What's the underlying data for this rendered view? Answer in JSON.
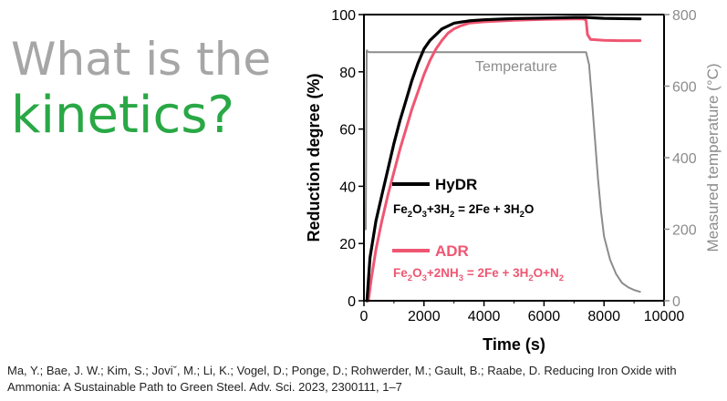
{
  "headline": {
    "line1": "What is the",
    "line2": "kinetics?"
  },
  "citation": "Ma, Y.; Bae, J. W.; Kim, S.; Joviˇ, M.; Li, K.; Vogel, D.; Ponge, D.; Rohwerder, M.; Gault, B.; Raabe, D. Reducing Iron Oxide with Ammonia: A Sustainable Path to Green Steel. Adv. Sci. 2023, 2300111, 1–7",
  "colors": {
    "headline_gray": "#a6a6a6",
    "headline_green": "#29a845",
    "hydr": "#000000",
    "adr": "#ef5672",
    "temperature": "#8c8c8c"
  },
  "chart_data": {
    "type": "line",
    "xlabel": "Time (s)",
    "ylabel": "Reduction degree (%)",
    "y2label": "Measured temperature (°C)",
    "xlim": [
      0,
      10000
    ],
    "ylim": [
      0,
      100
    ],
    "y2lim": [
      0,
      800
    ],
    "xticks": [
      0,
      2000,
      4000,
      6000,
      8000,
      10000
    ],
    "yticks": [
      0,
      20,
      40,
      60,
      80,
      100
    ],
    "y2ticks": [
      0,
      200,
      400,
      600,
      800
    ],
    "grid": false,
    "legend": "center-left",
    "series": [
      {
        "name": "HyDR",
        "axis": "left",
        "color": "#000000",
        "equation": {
          "parts": [
            "Fe",
            "2",
            "O",
            "3",
            "+3H",
            "2",
            " = 2Fe + 3H",
            "2",
            "O"
          ]
        },
        "x": [
          100,
          200,
          400,
          600,
          800,
          1000,
          1200,
          1400,
          1600,
          1800,
          2000,
          2200,
          2400,
          2600,
          2800,
          3000,
          3500,
          4000,
          5000,
          6000,
          7000,
          7400,
          7600,
          8000,
          8500,
          9200
        ],
        "y": [
          0,
          15,
          28,
          37,
          46,
          55,
          63,
          70,
          77,
          83,
          88,
          91,
          93,
          95,
          96,
          97,
          97.8,
          98.2,
          98.6,
          98.8,
          99,
          99,
          98.9,
          98.7,
          98.6,
          98.5
        ]
      },
      {
        "name": "ADR",
        "axis": "left",
        "color": "#ef5672",
        "equation": {
          "parts": [
            "Fe",
            "2",
            "O",
            "3",
            "+2NH",
            "3",
            " = 2Fe + 3H",
            "2",
            "O+N",
            "2"
          ]
        },
        "x": [
          150,
          250,
          400,
          600,
          800,
          1000,
          1200,
          1400,
          1600,
          1800,
          2000,
          2200,
          2400,
          2600,
          2800,
          3000,
          3200,
          3500,
          4000,
          5000,
          6000,
          7000,
          7300,
          7400,
          7450,
          7550,
          8000,
          8500,
          9200
        ],
        "y": [
          0,
          8,
          18,
          28,
          37,
          45,
          53,
          60,
          67,
          73,
          79,
          84,
          88,
          91,
          93.5,
          95,
          96,
          97,
          97.5,
          98,
          98.3,
          98.5,
          98.5,
          98,
          93,
          91.3,
          91,
          90.9,
          90.9
        ]
      },
      {
        "name": "Temperature",
        "axis": "right",
        "color": "#8c8c8c",
        "x": [
          0,
          60,
          90,
          150,
          300,
          500,
          1000,
          2000,
          3000,
          4000,
          5000,
          6000,
          7000,
          7400,
          7500,
          7600,
          7700,
          7800,
          7900,
          8000,
          8200,
          8400,
          8600,
          8800,
          9000,
          9200
        ],
        "y": [
          200,
          200,
          700,
          695,
          695,
          695,
          695,
          695,
          695,
          695,
          695,
          695,
          695,
          695,
          660,
          560,
          450,
          340,
          250,
          180,
          115,
          75,
          50,
          38,
          30,
          25
        ]
      }
    ]
  }
}
